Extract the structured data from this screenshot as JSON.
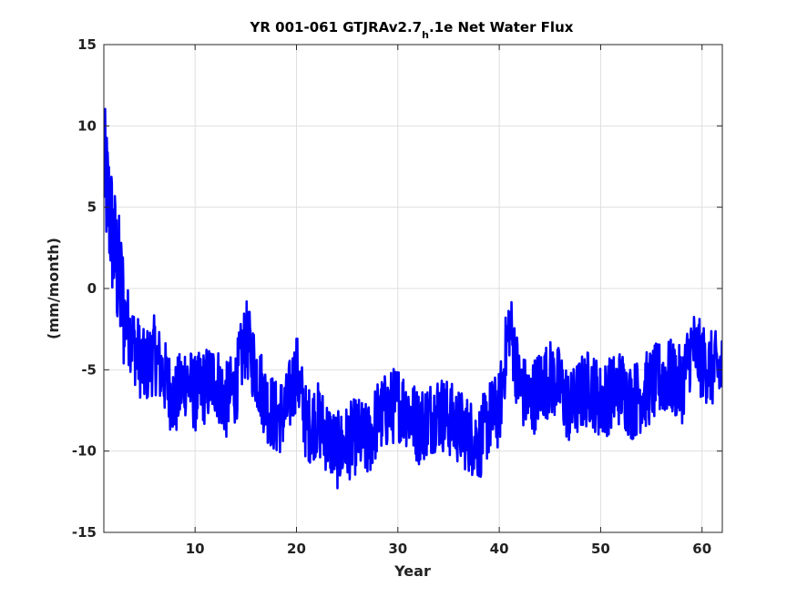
{
  "chart_data": {
    "type": "line",
    "title": "YR 001-061 GTJRAv2.7",
    "title_subscript": "h",
    "title_suffix": ".1e Net Water Flux",
    "xlabel": "Year",
    "ylabel": "(mm/month)",
    "xlim": [
      1,
      62
    ],
    "ylim": [
      -15,
      15
    ],
    "xticks": [
      10,
      20,
      30,
      40,
      50,
      60
    ],
    "yticks": [
      -15,
      -10,
      -5,
      0,
      5,
      10,
      15
    ],
    "grid": true,
    "line_color": "#0000ff",
    "series": [
      {
        "name": "",
        "sample_years": 1.0,
        "values": [
          7.5,
          2.5,
          -1.5,
          -3.5,
          -5.0,
          -4.0,
          -5.5,
          -7.0,
          -5.5,
          -6.5,
          -6.0,
          -5.5,
          -7.0,
          -6.0,
          -3.0,
          -5.0,
          -7.0,
          -8.0,
          -7.5,
          -5.0,
          -8.5,
          -8.0,
          -9.0,
          -10.0,
          -9.5,
          -9.0,
          -9.5,
          -8.0,
          -7.5,
          -7.0,
          -7.5,
          -8.5,
          -8.0,
          -7.5,
          -8.0,
          -8.5,
          -9.0,
          -9.5,
          -8.0,
          -7.5,
          -2.0,
          -6.0,
          -7.0,
          -6.0,
          -5.5,
          -6.0,
          -7.5,
          -6.5,
          -6.0,
          -7.0,
          -6.5,
          -6.0,
          -7.0,
          -6.5,
          -6.0,
          -5.5,
          -5.5,
          -6.0,
          -3.5,
          -4.5,
          -5.0
        ]
      }
    ]
  }
}
